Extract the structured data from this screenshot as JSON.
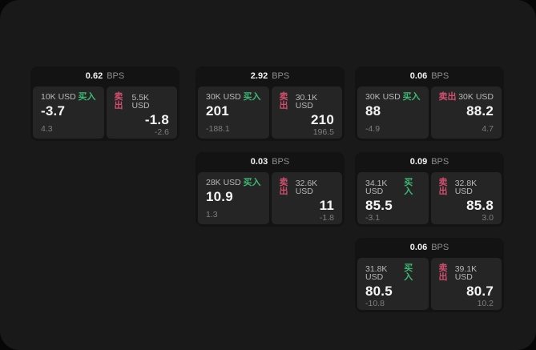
{
  "labels": {
    "bps_unit": "BPS",
    "buy": "买入",
    "sell": "卖出"
  },
  "colors": {
    "buy_green": "#3cb873",
    "sell_red": "#d04f6e",
    "page_bg": "#070707",
    "window_bg": "#191919",
    "card_bg": "#131313",
    "panel_bg": "#252525"
  },
  "cards": [
    {
      "bps": "0.62",
      "grid": {
        "row": 1,
        "col": 1
      },
      "buy": {
        "amount": "10K USD",
        "price": "-3.7",
        "delta": "4.3"
      },
      "sell": {
        "amount": "5.5K USD",
        "price": "-1.8",
        "delta": "-2.6"
      }
    },
    {
      "bps": "2.92",
      "grid": {
        "row": 1,
        "col": 2
      },
      "buy": {
        "amount": "30K USD",
        "price": "201",
        "delta": "-188.1"
      },
      "sell": {
        "amount": "30.1K USD",
        "price": "210",
        "delta": "196.5"
      }
    },
    {
      "bps": "0.06",
      "grid": {
        "row": 1,
        "col": 3
      },
      "buy": {
        "amount": "30K USD",
        "price": "88",
        "delta": "-4.9"
      },
      "sell": {
        "amount": "30K USD",
        "price": "88.2",
        "delta": "4.7"
      }
    },
    {
      "bps": "0.03",
      "grid": {
        "row": 2,
        "col": 2
      },
      "buy": {
        "amount": "28K USD",
        "price": "10.9",
        "delta": "1.3"
      },
      "sell": {
        "amount": "32.6K USD",
        "price": "11",
        "delta": "-1.8"
      }
    },
    {
      "bps": "0.09",
      "grid": {
        "row": 2,
        "col": 3
      },
      "buy": {
        "amount": "34.1K USD",
        "price": "85.5",
        "delta": "-3.1"
      },
      "sell": {
        "amount": "32.8K USD",
        "price": "85.8",
        "delta": "3.0"
      }
    },
    {
      "bps": "0.06",
      "grid": {
        "row": 3,
        "col": 3
      },
      "buy": {
        "amount": "31.8K USD",
        "price": "80.5",
        "delta": "-10.8"
      },
      "sell": {
        "amount": "39.1K USD",
        "price": "80.7",
        "delta": "10.2"
      }
    }
  ]
}
